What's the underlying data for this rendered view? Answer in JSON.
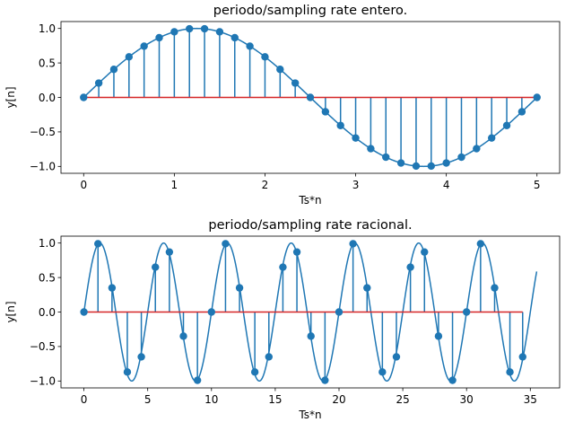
{
  "chart_data": [
    {
      "type": "stem",
      "title": "periodo/sampling rate entero.",
      "xlabel": "Ts*n",
      "ylabel": "y[n]",
      "xlim": [
        -0.25,
        5.25
      ],
      "ylim": [
        -1.1,
        1.1
      ],
      "xticks": [
        0,
        1,
        2,
        3,
        4,
        5
      ],
      "yticks": [
        -1.0,
        -0.5,
        0.0,
        0.5,
        1.0
      ],
      "grid": false,
      "legend": "none",
      "colors": {
        "series": "#1f77b4",
        "baseline": "#d62728"
      },
      "baseline": {
        "y": 0,
        "x_start": 0,
        "x_end": 5
      },
      "continuous_curve": {
        "function": "sin",
        "amplitude": 1,
        "period": 5,
        "x_start": 0,
        "x_end": 5
      },
      "stems": {
        "x": [
          0.0,
          0.1667,
          0.3333,
          0.5,
          0.6667,
          0.8333,
          1.0,
          1.1667,
          1.3333,
          1.5,
          1.6667,
          1.8333,
          2.0,
          2.1667,
          2.3333,
          2.5,
          2.6667,
          2.8333,
          3.0,
          3.1667,
          3.3333,
          3.5,
          3.6667,
          3.8333,
          4.0,
          4.1667,
          4.3333,
          4.5,
          4.6667,
          4.8333,
          5.0
        ],
        "y": [
          0.0,
          0.208,
          0.407,
          0.588,
          0.743,
          0.866,
          0.951,
          0.995,
          0.995,
          0.951,
          0.866,
          0.743,
          0.588,
          0.407,
          0.208,
          0.0,
          -0.208,
          -0.407,
          -0.588,
          -0.743,
          -0.866,
          -0.951,
          -0.995,
          -0.995,
          -0.951,
          -0.866,
          -0.743,
          -0.588,
          -0.407,
          -0.208,
          0.0
        ]
      }
    },
    {
      "type": "stem",
      "title": "periodo/sampling rate racional.",
      "xlabel": "Ts*n",
      "ylabel": "y[n]",
      "xlim": [
        -1.8,
        37.3
      ],
      "ylim": [
        -1.1,
        1.1
      ],
      "xticks": [
        0,
        5,
        10,
        15,
        20,
        25,
        30,
        35
      ],
      "yticks": [
        -1.0,
        -0.5,
        0.0,
        0.5,
        1.0
      ],
      "grid": false,
      "legend": "none",
      "colors": {
        "series": "#1f77b4",
        "baseline": "#d62728"
      },
      "baseline": {
        "y": 0,
        "x_start": 0,
        "x_end": 34.4
      },
      "continuous_curve": {
        "function": "sin",
        "amplitude": 1,
        "period": 5,
        "x_start": 0,
        "x_end": 35.5
      },
      "stems": {
        "x": [
          0.0,
          1.1,
          2.2,
          3.4,
          4.5,
          5.6,
          6.7,
          7.8,
          8.9,
          10.0,
          11.1,
          12.2,
          13.4,
          14.5,
          15.6,
          16.7,
          17.8,
          18.9,
          20.0,
          21.1,
          22.2,
          23.4,
          24.5,
          25.6,
          26.7,
          27.8,
          28.9,
          30.0,
          31.1,
          32.2,
          33.4,
          34.4
        ],
        "y": [
          0.0,
          0.99,
          0.35,
          -0.87,
          -0.65,
          0.65,
          0.87,
          -0.35,
          -0.99,
          0.0,
          0.99,
          0.35,
          -0.87,
          -0.65,
          0.65,
          0.87,
          -0.35,
          -0.99,
          0.0,
          0.99,
          0.35,
          -0.87,
          -0.65,
          0.65,
          0.87,
          -0.35,
          -0.99,
          0.0,
          0.99,
          0.35,
          -0.87,
          -0.65
        ]
      }
    }
  ]
}
